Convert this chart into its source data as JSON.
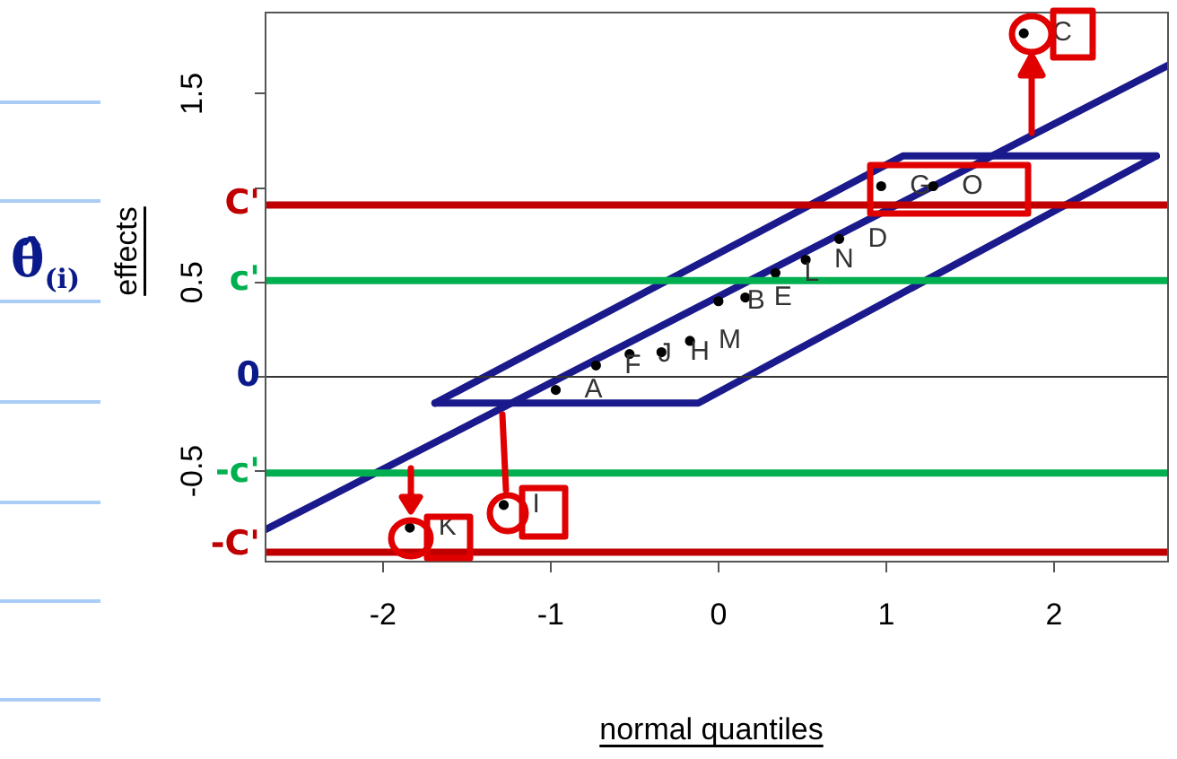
{
  "chart_data": {
    "type": "scatter",
    "xlabel": "normal quantiles",
    "ylabel": "effects",
    "xlim": [
      -2.7,
      2.68
    ],
    "ylim": [
      -0.98,
      1.93
    ],
    "xticks": [
      -2,
      -1,
      0,
      1,
      2
    ],
    "yticks": [
      -0.5,
      {
        "value": 0,
        "label": null
      },
      0.5,
      {
        "value": 1,
        "label": null
      },
      1.5
    ],
    "grid": false,
    "legend": false,
    "series": [
      {
        "color": "#000000",
        "marker": "circle",
        "x": [
          -1.84,
          -1.28,
          -0.97,
          -0.73,
          -0.53,
          -0.34,
          -0.17,
          0.0,
          0.16,
          0.34,
          0.52,
          0.72,
          0.97,
          1.28,
          1.82
        ],
        "values": [
          -0.8,
          -0.68,
          -0.07,
          0.06,
          0.12,
          0.13,
          0.19,
          0.4,
          0.42,
          0.55,
          0.62,
          0.73,
          1.01,
          1.01,
          1.82
        ],
        "value_labels": [
          "K",
          "I",
          "A",
          "F",
          "J",
          "H",
          "M",
          "B",
          "E",
          "L",
          "N",
          "D",
          "G",
          "O",
          "C"
        ]
      },
      {
        "type": "line",
        "color": "#1a1a8c",
        "x": [
          -2.7,
          2.68
        ],
        "values": [
          -0.81,
          1.65
        ]
      },
      {
        "type": "line",
        "color": "#1a1a8c",
        "x": [
          -1.69,
          -0.12,
          2.61
        ],
        "values": [
          -0.14,
          -0.14,
          1.17
        ]
      },
      {
        "type": "line",
        "color": "#1a1a8c",
        "x": [
          -1.69,
          1.1,
          2.61
        ],
        "values": [
          -0.14,
          1.17,
          1.17
        ]
      }
    ],
    "ref_lines": [
      {
        "axis": "y",
        "value": 0,
        "label": "0"
      },
      {
        "axis": "y",
        "value": 0.91,
        "label": "C'",
        "color": "#c00000"
      },
      {
        "axis": "y",
        "value": 0.51,
        "label": "c'",
        "color": "#00b050"
      },
      {
        "axis": "y",
        "value": -0.51,
        "label": "-c'",
        "color": "#00b050"
      },
      {
        "axis": "y",
        "value": -0.93,
        "label": "-C'",
        "color": "#c00000"
      }
    ],
    "annotations": [
      "θ̂$_{(i)}$"
    ]
  }
}
